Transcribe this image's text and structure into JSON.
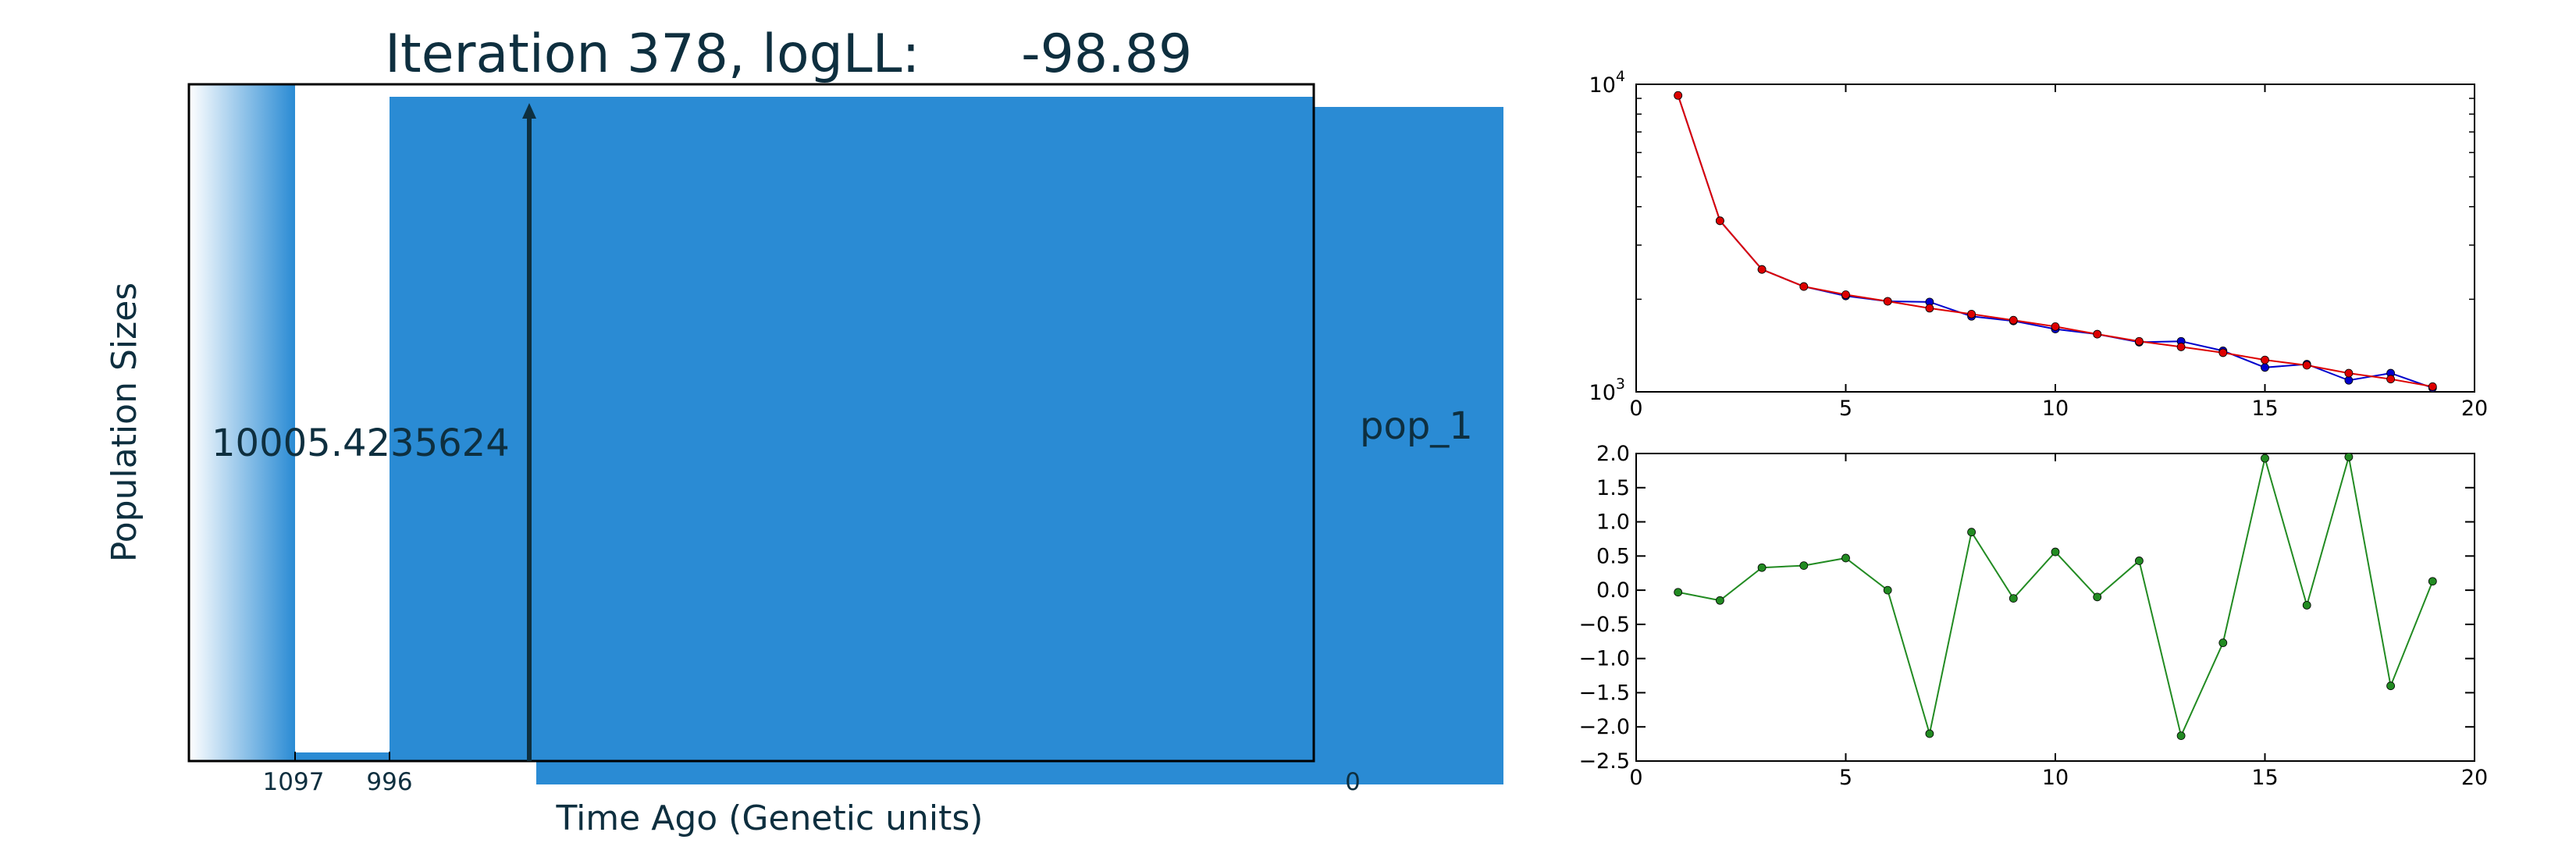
{
  "main_chart": {
    "title": "Iteration 378, logLL:      -98.89",
    "xlabel": "Time Ago (Genetic units)",
    "ylabel": "Population Sizes",
    "x_tick_labels": [
      "1097",
      "996",
      "0"
    ],
    "population_label": "pop_1",
    "size_annotation": "10005.4235624",
    "colors": {
      "fill": "#2a8bd4",
      "arrow": "#0e2f3f",
      "text": "#0e2f3f"
    }
  },
  "chart_data": [
    {
      "type": "line",
      "title": "",
      "xlabel": "",
      "ylabel": "",
      "xlim": [
        0,
        20
      ],
      "ylim": [
        1000,
        10000
      ],
      "yscale": "log",
      "x_ticks": [
        "0",
        "5",
        "10",
        "15",
        "20"
      ],
      "y_ticks": [
        "10^3",
        "10^4"
      ],
      "grid": false,
      "series": [
        {
          "color": "#0000cc",
          "x": [
            1,
            2,
            3,
            4,
            5,
            6,
            7,
            8,
            9,
            10,
            11,
            12,
            13,
            14,
            15,
            16,
            17,
            18,
            19
          ],
          "values": [
            9200,
            3600,
            2500,
            2200,
            2050,
            1970,
            1960,
            1760,
            1700,
            1600,
            1540,
            1450,
            1460,
            1360,
            1200,
            1230,
            1090,
            1150,
            1030
          ]
        },
        {
          "color": "#dd0000",
          "x": [
            1,
            2,
            3,
            4,
            5,
            6,
            7,
            8,
            9,
            10,
            11,
            12,
            13,
            14,
            15,
            16,
            17,
            18,
            19
          ],
          "values": [
            9200,
            3600,
            2500,
            2200,
            2070,
            1970,
            1870,
            1790,
            1710,
            1630,
            1540,
            1460,
            1400,
            1340,
            1270,
            1220,
            1150,
            1100,
            1040
          ]
        }
      ]
    },
    {
      "type": "line",
      "title": "",
      "xlabel": "",
      "ylabel": "",
      "xlim": [
        0,
        20
      ],
      "ylim": [
        -2.5,
        2.0
      ],
      "x_ticks": [
        "0",
        "5",
        "10",
        "15",
        "20"
      ],
      "y_ticks": [
        "2.0",
        "1.5",
        "1.0",
        "0.5",
        "0.0",
        "−0.5",
        "−1.0",
        "−1.5",
        "−2.0",
        "−2.5"
      ],
      "grid": false,
      "series": [
        {
          "color": "#228b22",
          "x": [
            1,
            2,
            3,
            4,
            5,
            6,
            7,
            8,
            9,
            10,
            11,
            12,
            13,
            14,
            15,
            16,
            17,
            18,
            19
          ],
          "values": [
            -0.03,
            -0.15,
            0.33,
            0.36,
            0.47,
            0.0,
            -2.1,
            0.85,
            -0.12,
            0.56,
            -0.1,
            0.43,
            -2.13,
            -0.77,
            1.93,
            -0.22,
            1.95,
            -1.4,
            0.13
          ]
        }
      ]
    }
  ]
}
